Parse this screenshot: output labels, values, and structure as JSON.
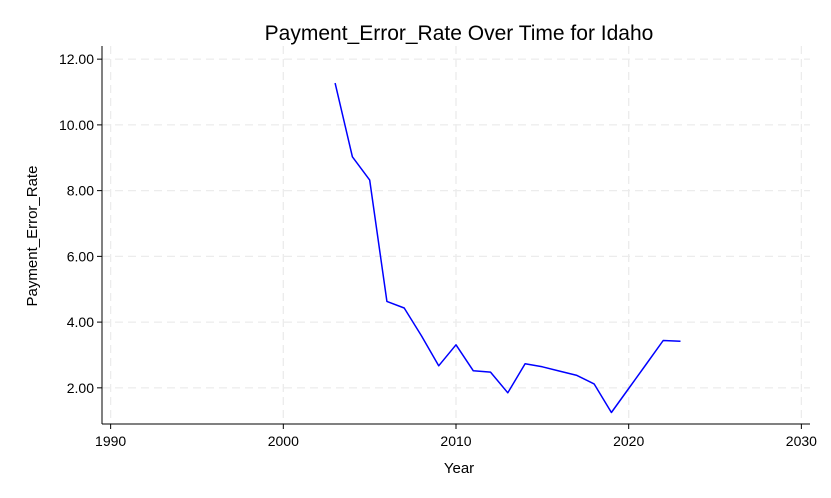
{
  "chart_data": {
    "type": "line",
    "title": "Payment_Error_Rate Over Time for Idaho",
    "xlabel": "Year",
    "ylabel": "Payment_Error_Rate",
    "xlim": [
      1989.5,
      2030.5
    ],
    "ylim": [
      0.9,
      12.4
    ],
    "xticks": [
      1990,
      2000,
      2010,
      2020,
      2030
    ],
    "yticks": [
      2.0,
      4.0,
      6.0,
      8.0,
      10.0,
      12.0
    ],
    "ytick_labels": [
      "2.00",
      "4.00",
      "6.00",
      "8.00",
      "10.00",
      "12.00"
    ],
    "grid": true,
    "line_color": "#0000ff",
    "series": [
      {
        "x": [
          2003,
          2004,
          2005,
          2006,
          2007,
          2008,
          2009,
          2010,
          2011,
          2012,
          2013,
          2014,
          2015,
          2016,
          2017,
          2018,
          2019,
          2020,
          2021,
          2022,
          2023
        ],
        "values": [
          11.27,
          9.03,
          8.32,
          4.63,
          4.43,
          3.58,
          2.67,
          3.31,
          2.52,
          2.48,
          1.85,
          2.73,
          2.64,
          2.51,
          2.38,
          2.12,
          1.25,
          1.98,
          2.71,
          3.44,
          3.42
        ]
      }
    ]
  }
}
